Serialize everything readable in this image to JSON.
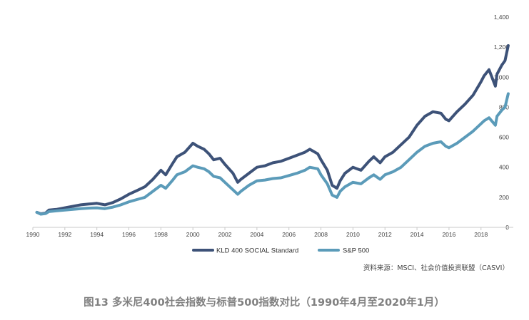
{
  "chart_data": {
    "type": "line",
    "xlabel": "",
    "ylabel": "",
    "xlim": [
      1990,
      2019.75
    ],
    "ylim": [
      0,
      1400
    ],
    "x_ticks": [
      "1990",
      "1992",
      "1994",
      "1996",
      "1998",
      "2000",
      "2002",
      "2004",
      "2006",
      "2008",
      "2010",
      "2012",
      "2014",
      "2016",
      "2018"
    ],
    "y_ticks": [
      "0",
      "200",
      "400",
      "600",
      "800",
      "1,000",
      "1,200",
      "1,400"
    ],
    "grid": false,
    "legend_position": "bottom",
    "series": [
      {
        "name": "KLD 400 SOCIAL Standard",
        "color": "#3d5278",
        "x": [
          1990.25,
          1990.5,
          1990.8,
          1991.0,
          1991.5,
          1992.0,
          1992.5,
          1993.0,
          1993.5,
          1994.0,
          1994.5,
          1995.0,
          1995.5,
          1996.0,
          1996.5,
          1997.0,
          1997.5,
          1998.0,
          1998.3,
          1998.7,
          1999.0,
          1999.5,
          2000.0,
          2000.3,
          2000.7,
          2001.0,
          2001.3,
          2001.7,
          2002.0,
          2002.5,
          2002.8,
          2003.0,
          2003.5,
          2004.0,
          2004.5,
          2005.0,
          2005.5,
          2006.0,
          2006.5,
          2007.0,
          2007.3,
          2007.8,
          2008.0,
          2008.4,
          2008.7,
          2009.0,
          2009.2,
          2009.5,
          2010.0,
          2010.5,
          2011.0,
          2011.3,
          2011.7,
          2012.0,
          2012.5,
          2013.0,
          2013.5,
          2014.0,
          2014.5,
          2015.0,
          2015.5,
          2015.8,
          2016.0,
          2016.5,
          2017.0,
          2017.5,
          2018.0,
          2018.2,
          2018.5,
          2018.9,
          2019.0,
          2019.3,
          2019.5,
          2019.7
        ],
        "values": [
          100,
          90,
          95,
          115,
          120,
          130,
          140,
          150,
          155,
          160,
          150,
          165,
          190,
          220,
          245,
          270,
          320,
          380,
          350,
          420,
          470,
          500,
          560,
          540,
          520,
          490,
          450,
          460,
          420,
          360,
          300,
          320,
          360,
          400,
          410,
          430,
          440,
          460,
          480,
          500,
          520,
          490,
          450,
          380,
          280,
          260,
          310,
          360,
          400,
          380,
          440,
          470,
          430,
          470,
          500,
          550,
          600,
          680,
          740,
          770,
          760,
          720,
          710,
          770,
          820,
          880,
          970,
          1010,
          1050,
          940,
          1020,
          1080,
          1110,
          1210
        ]
      },
      {
        "name": "S&P 500",
        "color": "#5b9bb9",
        "x": [
          1990.25,
          1990.5,
          1990.8,
          1991.0,
          1991.5,
          1992.0,
          1992.5,
          1993.0,
          1993.5,
          1994.0,
          1994.5,
          1995.0,
          1995.5,
          1996.0,
          1996.5,
          1997.0,
          1997.5,
          1998.0,
          1998.3,
          1998.7,
          1999.0,
          1999.5,
          2000.0,
          2000.3,
          2000.7,
          2001.0,
          2001.3,
          2001.7,
          2002.0,
          2002.5,
          2002.8,
          2003.0,
          2003.5,
          2004.0,
          2004.5,
          2005.0,
          2005.5,
          2006.0,
          2006.5,
          2007.0,
          2007.3,
          2007.8,
          2008.0,
          2008.4,
          2008.7,
          2009.0,
          2009.2,
          2009.5,
          2010.0,
          2010.5,
          2011.0,
          2011.3,
          2011.7,
          2012.0,
          2012.5,
          2013.0,
          2013.5,
          2014.0,
          2014.5,
          2015.0,
          2015.5,
          2015.8,
          2016.0,
          2016.5,
          2017.0,
          2017.5,
          2018.0,
          2018.2,
          2018.5,
          2018.9,
          2019.0,
          2019.3,
          2019.5,
          2019.7
        ],
        "values": [
          100,
          88,
          92,
          105,
          110,
          115,
          120,
          125,
          128,
          130,
          125,
          135,
          150,
          170,
          185,
          200,
          240,
          280,
          260,
          310,
          350,
          370,
          410,
          400,
          390,
          370,
          340,
          330,
          300,
          250,
          220,
          240,
          280,
          310,
          315,
          325,
          330,
          345,
          360,
          380,
          400,
          390,
          350,
          290,
          215,
          200,
          240,
          270,
          300,
          290,
          330,
          350,
          320,
          350,
          370,
          400,
          450,
          500,
          540,
          560,
          570,
          540,
          530,
          560,
          600,
          640,
          690,
          710,
          730,
          680,
          740,
          780,
          800,
          890
        ]
      }
    ]
  },
  "legend": {
    "items": [
      {
        "label": "KLD 400 SOCIAL Standard",
        "color": "#3d5278"
      },
      {
        "label": "S&P 500",
        "color": "#5b9bb9"
      }
    ]
  },
  "source_note": "资料来源：MSCI、社会价值投资联盟（CASVI）",
  "caption": "图13   多米尼400社会指数与标普500指数对比（1990年4月至2020年1月）"
}
